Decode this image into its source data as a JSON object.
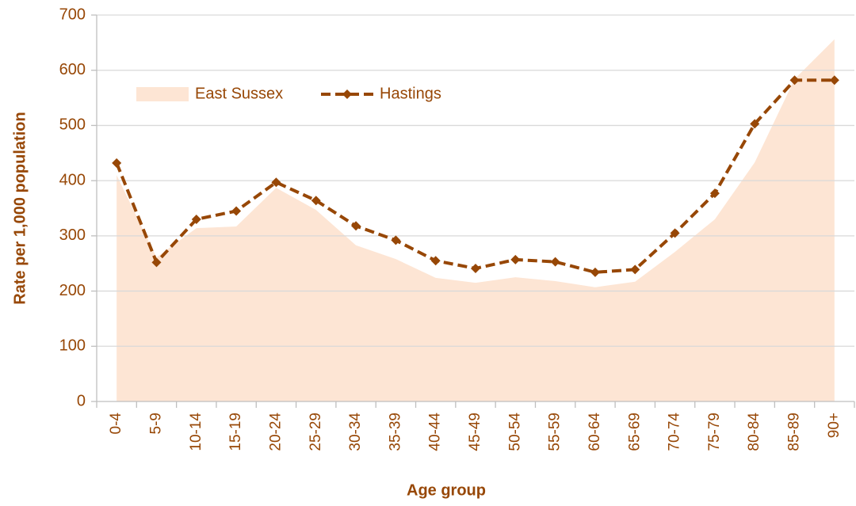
{
  "chart_data": {
    "type": "line",
    "x_label": "Age group",
    "y_label": "Rate per 1,000 population",
    "categories": [
      "0-4",
      "5-9",
      "10-14",
      "15-19",
      "20-24",
      "25-29",
      "30-34",
      "35-39",
      "40-44",
      "45-49",
      "50-54",
      "55-59",
      "60-64",
      "65-69",
      "70-74",
      "75-79",
      "80-84",
      "85-89",
      "90+"
    ],
    "series": [
      {
        "name": "East Sussex",
        "kind": "area",
        "color": "#fde5d4",
        "values": [
          410,
          261,
          314,
          317,
          387,
          347,
          283,
          258,
          224,
          215,
          225,
          218,
          207,
          217,
          271,
          330,
          433,
          584,
          656
        ]
      },
      {
        "name": "Hastings",
        "kind": "line",
        "color": "#974706",
        "values": [
          432,
          252,
          330,
          345,
          397,
          364,
          318,
          292,
          255,
          241,
          257,
          253,
          234,
          239,
          305,
          377,
          503,
          582,
          582
        ]
      }
    ],
    "ylim": [
      0,
      700
    ],
    "yticks": [
      0,
      100,
      200,
      300,
      400,
      500,
      600,
      700
    ],
    "grid": true
  }
}
